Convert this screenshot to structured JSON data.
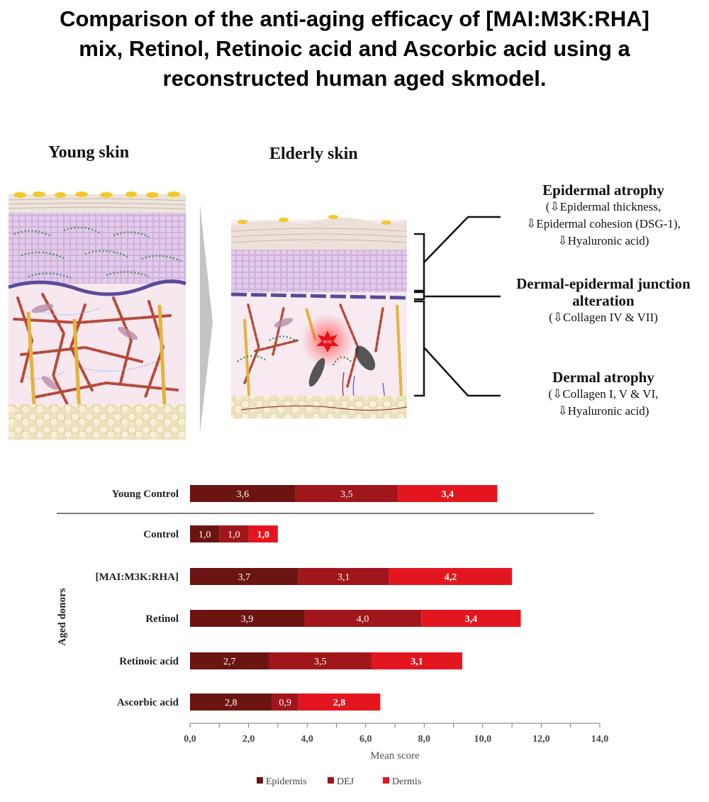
{
  "title": {
    "line1": "Comparison of the anti-aging efficacy of [MAI:M3K:RHA]",
    "line2": "mix, Retinol, Retinoic acid and Ascorbic acid using a",
    "line3": "reconstructed human aged skmodel."
  },
  "diagram": {
    "young_label": "Young skin",
    "elderly_label": "Elderly skin",
    "ros_label": "ROS",
    "annotations": [
      {
        "heading": [
          "Epidermal atrophy"
        ],
        "lines": [
          "(⇩Epidermal thickness,",
          "⇩Epidermal cohesion (DSG-1),",
          "⇩Hyaluronic acid)"
        ]
      },
      {
        "heading": [
          "Dermal-epidermal junction",
          "alteration"
        ],
        "lines": [
          "(⇩Collagen IV & VII)"
        ]
      },
      {
        "heading": [
          "Dermal atrophy"
        ],
        "lines": [
          "(⇩Collagen I, V & VI,",
          "⇩Hyaluronic acid)"
        ]
      }
    ]
  },
  "chart_data": {
    "type": "bar",
    "orientation": "horizontal",
    "stacked": true,
    "categories": [
      "Young Control",
      "Control",
      "[MAI:M3K:RHA]",
      "Retinol",
      "Retinoic acid",
      "Ascorbic acid"
    ],
    "group_label": "Aged donors",
    "series": [
      {
        "name": "Epidermis",
        "color": "#6b1411",
        "values": [
          3.6,
          1.0,
          3.7,
          3.9,
          2.7,
          2.8
        ],
        "labels": [
          "3,6",
          "1,0",
          "3,7",
          "3,9",
          "2,7",
          "2,8"
        ]
      },
      {
        "name": "DEJ",
        "color": "#a0161a",
        "values": [
          3.5,
          1.0,
          3.1,
          4.0,
          3.5,
          0.9
        ],
        "labels": [
          "3,5",
          "1,0",
          "3,1",
          "4,0",
          "3,5",
          "0,9"
        ]
      },
      {
        "name": "Dermis",
        "color": "#e3161f",
        "values": [
          3.4,
          1.0,
          4.2,
          3.4,
          3.1,
          2.8
        ],
        "labels": [
          "3,4",
          "1,0",
          "4,2",
          "3,4",
          "3,1",
          "2,8"
        ]
      }
    ],
    "xlabel": "Mean score",
    "xlim": [
      0,
      14
    ],
    "xticks": [
      "0,0",
      "2,0",
      "4,0",
      "6,0",
      "8,0",
      "10,0",
      "12,0",
      "14,0"
    ],
    "legend_position": "bottom"
  }
}
